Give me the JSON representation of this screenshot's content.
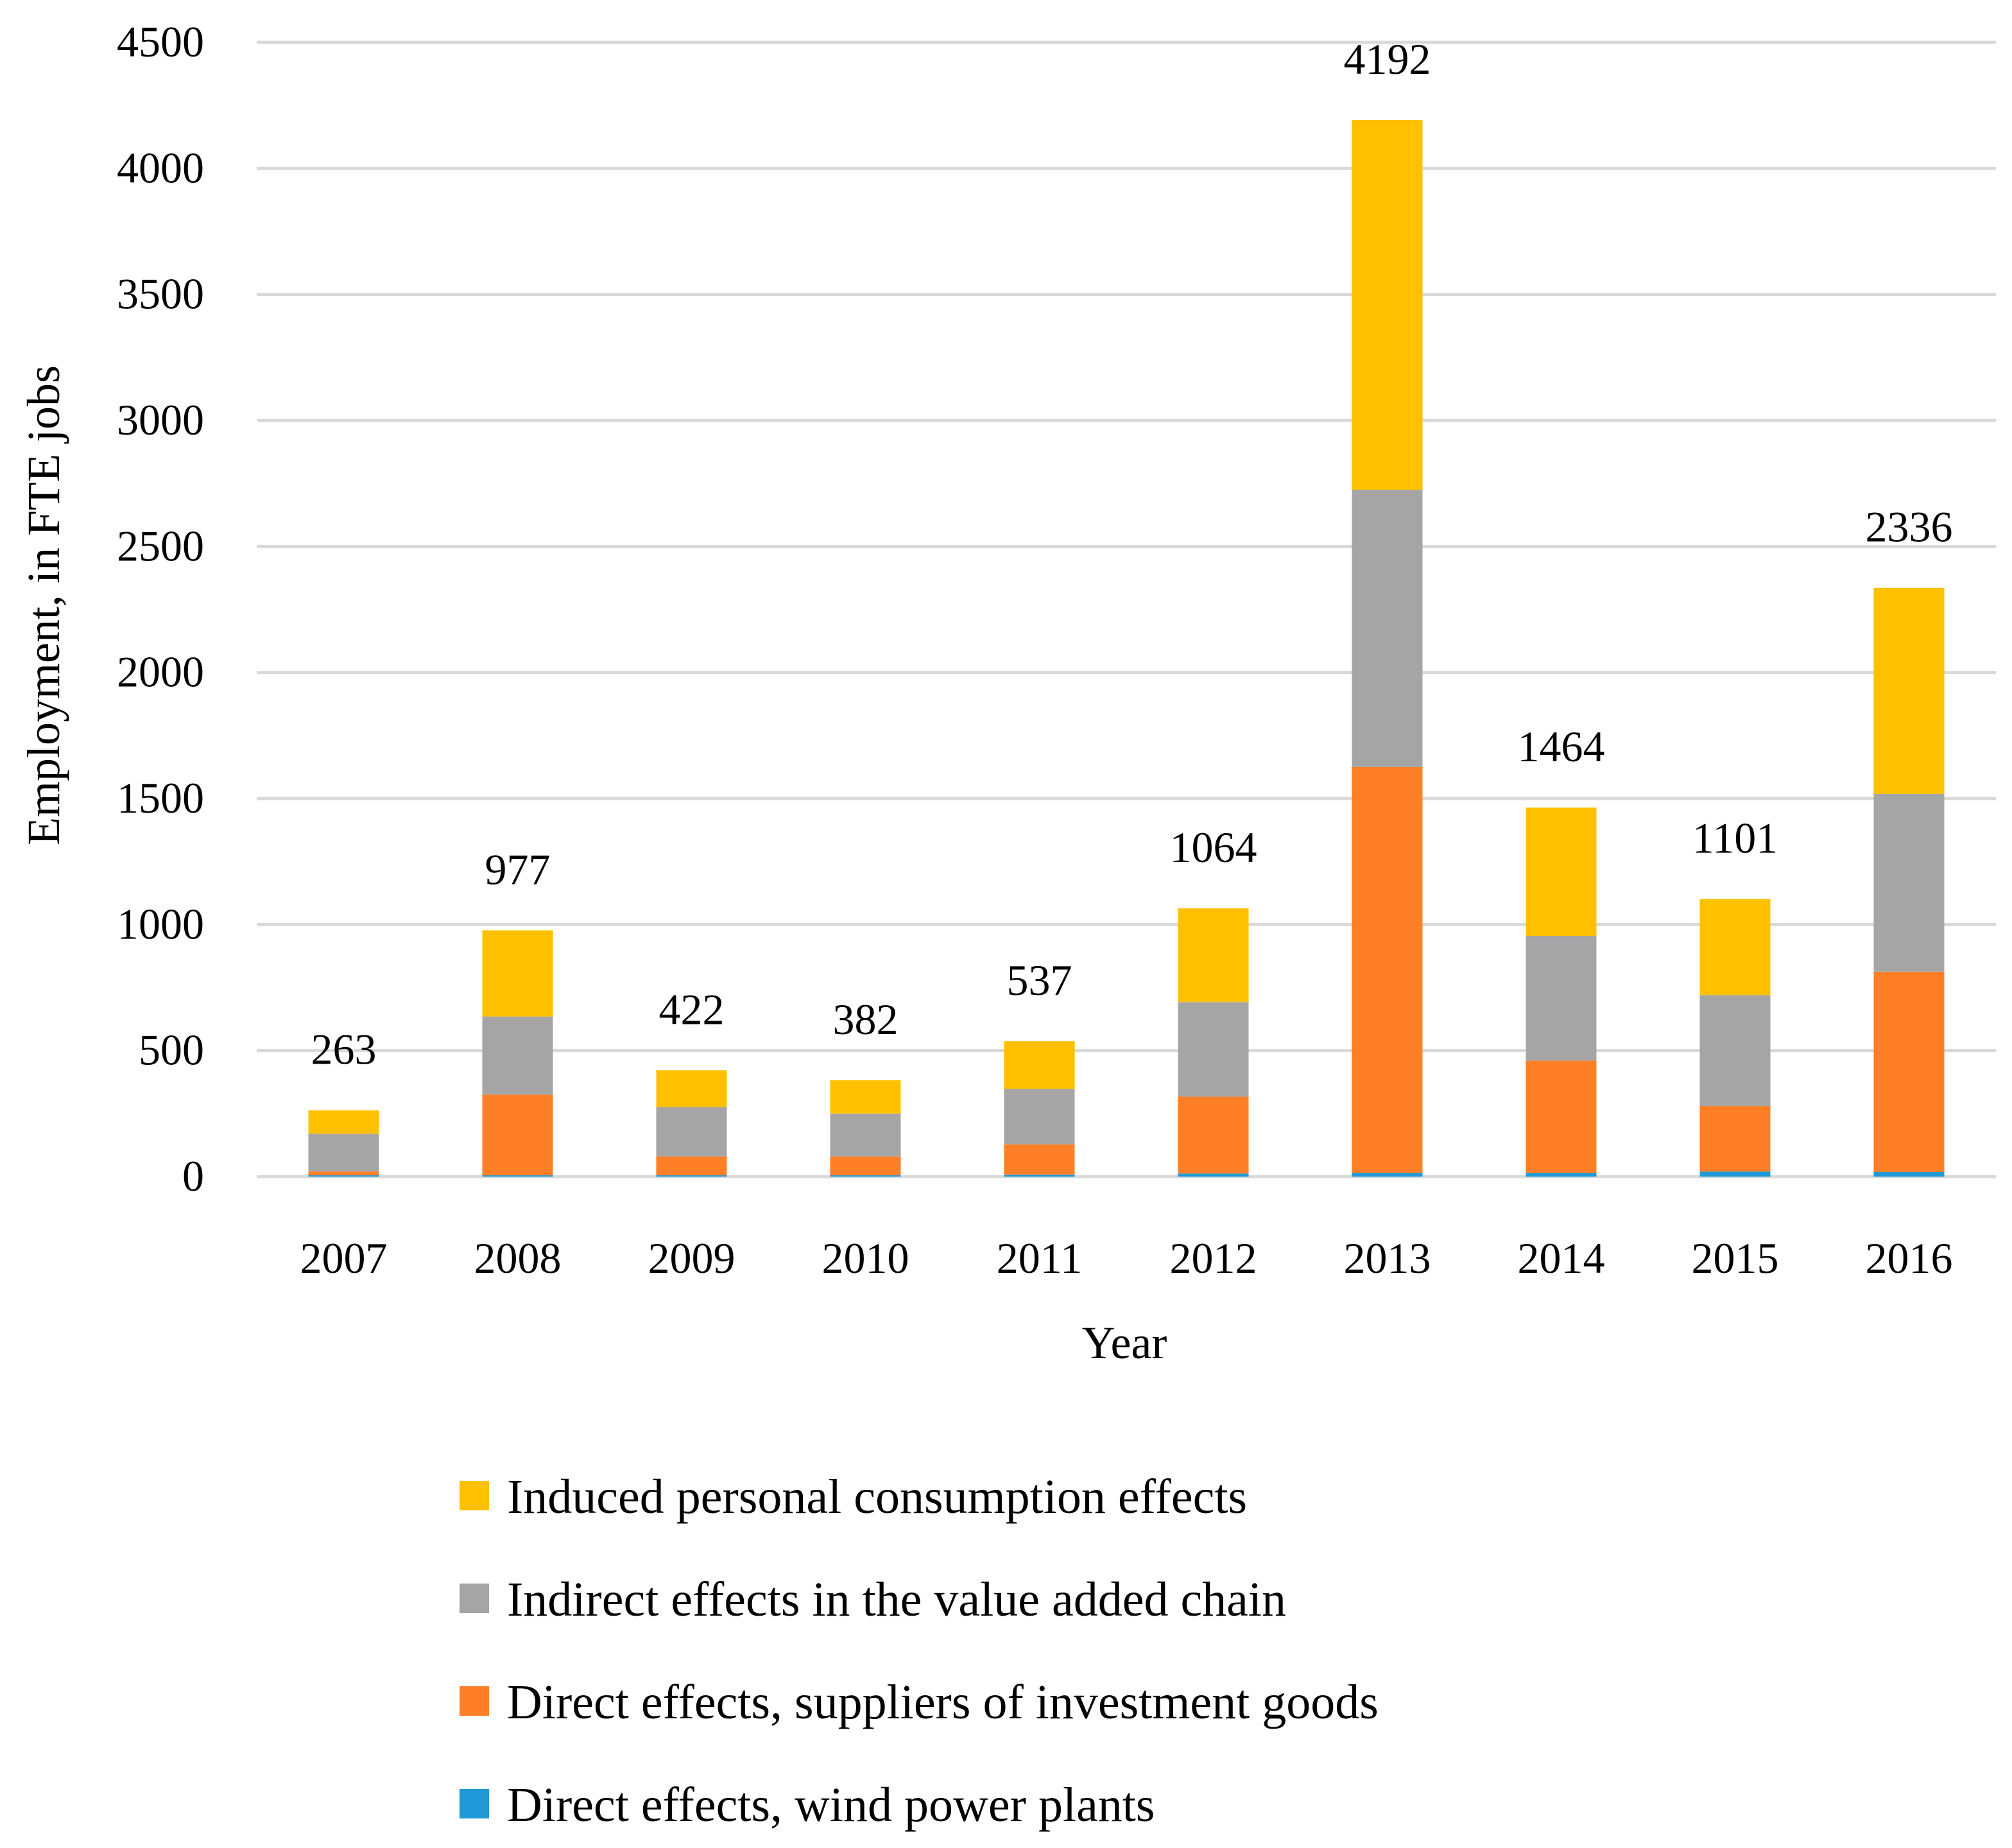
{
  "chart_data": {
    "type": "bar",
    "stacked": true,
    "title": "",
    "xlabel": "Year",
    "ylabel": "Employment, in FTE jobs",
    "ylim": [
      0,
      4500
    ],
    "yticks": [
      0,
      500,
      1000,
      1500,
      2000,
      2500,
      3000,
      3500,
      4000,
      4500
    ],
    "grid": true,
    "legend_position": "bottom",
    "categories": [
      "2007",
      "2008",
      "2009",
      "2010",
      "2011",
      "2012",
      "2013",
      "2014",
      "2015",
      "2016"
    ],
    "totals": [
      263,
      977,
      422,
      382,
      537,
      1064,
      4192,
      1464,
      1101,
      2336
    ],
    "total_labels": [
      "263",
      "977",
      "422",
      "382",
      "537",
      "1064",
      "4192",
      "1464",
      "1101",
      "2336"
    ],
    "series": [
      {
        "name": "Direct effects, wind power plants",
        "color": "#1f9ad6",
        "values": [
          5,
          5,
          5,
          5,
          8,
          12,
          15,
          15,
          20,
          18
        ]
      },
      {
        "name": "Direct effects, suppliers of investment goods",
        "color": "#ff7f27",
        "values": [
          15,
          320,
          75,
          75,
          120,
          305,
          1610,
          445,
          260,
          795
        ]
      },
      {
        "name": "Indirect effects in the value added chain",
        "color": "#a5a5a5",
        "values": [
          150,
          310,
          195,
          170,
          220,
          375,
          1100,
          495,
          440,
          705
        ]
      },
      {
        "name": "Induced personal consumption effects",
        "color": "#ffc000",
        "values": [
          93,
          342,
          147,
          132,
          189,
          372,
          1467,
          509,
          381,
          818
        ]
      }
    ],
    "legend_order": [
      3,
      2,
      1,
      0
    ]
  }
}
